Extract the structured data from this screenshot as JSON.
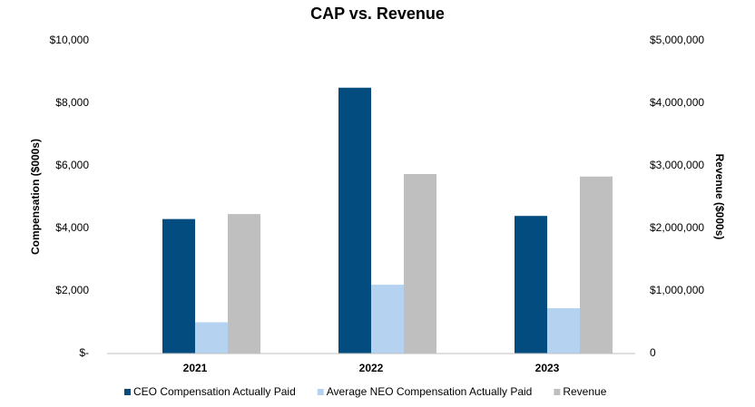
{
  "chart_data": {
    "type": "bar",
    "title": "CAP vs. Revenue",
    "categories": [
      "2021",
      "2022",
      "2023"
    ],
    "series": [
      {
        "name": "CEO Compensation Actually Paid",
        "color": "#034c7f",
        "values": [
          4300,
          8500,
          4400
        ]
      },
      {
        "name": "Average NEO Compensation Actually Paid",
        "color": "#b5d3f1",
        "values": [
          1000,
          2200,
          1450
        ]
      },
      {
        "name": "Revenue",
        "color": "#bfbfbf",
        "axis": "y2",
        "values": [
          2230000,
          2870000,
          2830000
        ]
      }
    ],
    "y_label": "Compensation ($000s)",
    "y2_label": "Revenue ($000s)",
    "ylim": [
      0,
      10000
    ],
    "yticks": [
      {
        "value": 0,
        "label": "$-"
      },
      {
        "value": 2000,
        "label": "$2,000"
      },
      {
        "value": 4000,
        "label": "$4,000"
      },
      {
        "value": 6000,
        "label": "$6,000"
      },
      {
        "value": 8000,
        "label": "$8,000"
      },
      {
        "value": 10000,
        "label": "$10,000"
      }
    ],
    "y2lim": [
      0,
      5000000
    ],
    "y2ticks": [
      0,
      {
        "value": 1000000,
        "label": "$1,000,000"
      },
      {
        "value": 2000000,
        "label": "$2,000,000"
      },
      {
        "value": 3000000,
        "label": "$3,000,000"
      },
      {
        "value": 4000000,
        "label": "$4,000,000"
      },
      {
        "value": 5000000,
        "label": "$5,000,000"
      }
    ],
    "legend": "bottom",
    "grid": false
  }
}
